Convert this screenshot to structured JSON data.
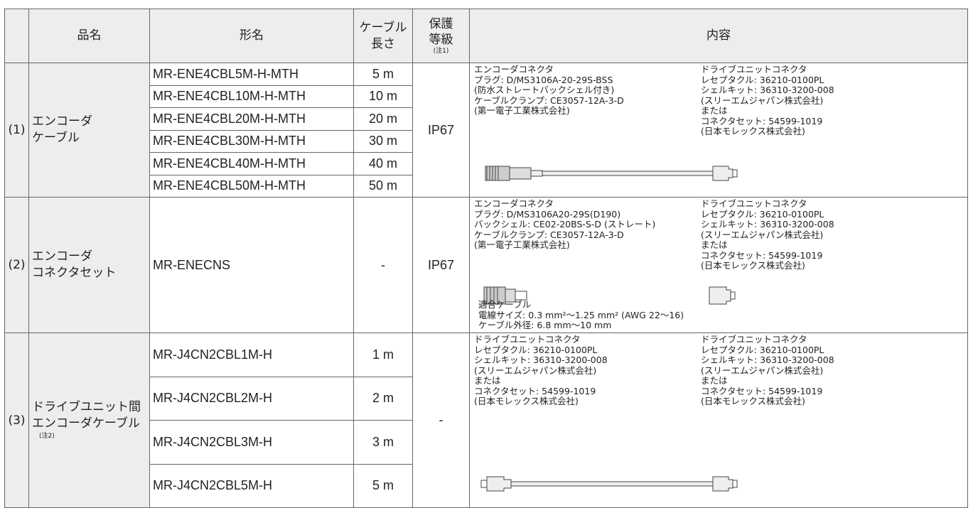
{
  "header": {
    "cells": [
      "品名",
      "形名",
      "ケーブル\n長さ",
      "保護\n等級",
      "内容"
    ],
    "protection_note": "(注1)"
  },
  "groups": [
    {
      "no": "(1)",
      "name": "エンコーダ\nケーブル",
      "protection": "IP67",
      "models": [
        {
          "model": "MR-ENE4CBL5M-H-MTH",
          "length": "5 m"
        },
        {
          "model": "MR-ENE4CBL10M-H-MTH",
          "length": "10 m"
        },
        {
          "model": "MR-ENE4CBL20M-H-MTH",
          "length": "20 m"
        },
        {
          "model": "MR-ENE4CBL30M-H-MTH",
          "length": "30 m"
        },
        {
          "model": "MR-ENE4CBL40M-H-MTH",
          "length": "40 m"
        },
        {
          "model": "MR-ENE4CBL50M-H-MTH",
          "length": "50 m"
        }
      ],
      "content": {
        "left": [
          "エンコーダコネクタ",
          "プラグ: D/MS3106A-20-29S-BSS",
          "(防水ストレートバックシェル付き)",
          "ケーブルクランプ: CE3057-12A-3-D",
          "(第一電子工業株式会社)"
        ],
        "right": [
          "ドライブユニットコネクタ",
          "レセプタクル: 36210-0100PL",
          "シェルキット: 36310-3200-008",
          "(スリーエムジャパン株式会社)",
          "または",
          "コネクタセット: 54599-1019",
          "(日本モレックス株式会社)"
        ]
      }
    },
    {
      "no": "(2)",
      "name": "エンコーダ\nコネクタセット",
      "protection": "IP67",
      "models": [
        {
          "model": "MR-ENECNS",
          "length": "-"
        }
      ],
      "content": {
        "left": [
          "エンコーダコネクタ",
          "プラグ: D/MS3106A20-29S(D190)",
          "バックシェル: CE02-20BS-S-D (ストレート)",
          "ケーブルクランプ: CE3057-12A-3-D",
          "(第一電子工業株式会社)"
        ],
        "right": [
          "ドライブユニットコネクタ",
          "レセプタクル: 36210-0100PL",
          "シェルキット: 36310-3200-008",
          "(スリーエムジャパン株式会社)",
          "または",
          "コネクタセット: 54599-1019",
          "(日本モレックス株式会社)"
        ],
        "extra": [
          "適合ケーブル",
          "電線サイズ: 0.3 mm²〜1.25 mm² (AWG 22〜16)",
          "ケーブル外径: 6.8 mm〜10 mm"
        ]
      }
    },
    {
      "no": "(3)",
      "name": "ドライブユニット間\nエンコーダケーブル",
      "name_note": "(注2)",
      "protection": "-",
      "models": [
        {
          "model": "MR-J4CN2CBL1M-H",
          "length": "1 m"
        },
        {
          "model": "MR-J4CN2CBL2M-H",
          "length": "2 m"
        },
        {
          "model": "MR-J4CN2CBL3M-H",
          "length": "3 m"
        },
        {
          "model": "MR-J4CN2CBL5M-H",
          "length": "5 m"
        }
      ],
      "content": {
        "left": [
          "ドライブユニットコネクタ",
          "レセプタクル: 36210-0100PL",
          "シェルキット: 36310-3200-008",
          "(スリーエムジャパン株式会社)",
          "または",
          "コネクタセット: 54599-1019",
          "(日本モレックス株式会社)"
        ],
        "right": [
          "ドライブユニットコネクタ",
          "レセプタクル: 36210-0100PL",
          "シェルキット: 36310-3200-008",
          "(スリーエムジャパン株式会社)",
          "または",
          "コネクタセット: 54599-1019",
          "(日本モレックス株式会社)"
        ]
      }
    }
  ]
}
